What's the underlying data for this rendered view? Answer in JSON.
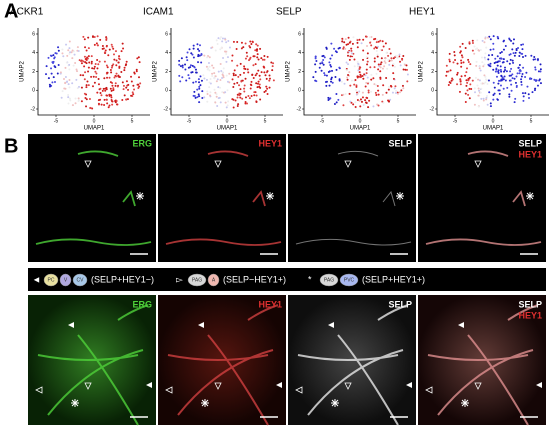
{
  "panel_a": {
    "label": "A",
    "plots": [
      {
        "title": "ACKR1",
        "x_label": "UMAP1",
        "y_label": "UMAP2",
        "yticks": [
          "6",
          "4",
          "2",
          "0",
          "-2"
        ],
        "xticks": [
          "-5",
          "0",
          "5"
        ]
      },
      {
        "title": "ICAM1",
        "x_label": "UMAP1",
        "y_label": "UMAP2",
        "yticks": [
          "6",
          "4",
          "2",
          "0",
          "-2"
        ],
        "xticks": [
          "-5",
          "0",
          "5"
        ]
      },
      {
        "title": "SELP",
        "x_label": "UMAP1",
        "y_label": "UMAP2",
        "yticks": [
          "6",
          "4",
          "2",
          "0",
          "-2"
        ],
        "xticks": [
          "-5",
          "0",
          "5"
        ]
      },
      {
        "title": "HEY1",
        "x_label": "UMAP1",
        "y_label": "UMAP2",
        "yticks": [
          "6",
          "4",
          "2",
          "0",
          "-2"
        ],
        "xticks": [
          "-5",
          "0",
          "5"
        ]
      }
    ]
  },
  "panel_b": {
    "label": "B",
    "row1": [
      {
        "labels": [
          "ERG"
        ]
      },
      {
        "labels": [
          "HEY1"
        ]
      },
      {
        "labels": [
          "SELP"
        ]
      },
      {
        "labels": [
          "SELP",
          "HEY1"
        ]
      }
    ],
    "row2": [
      {
        "labels": [
          "ERG"
        ]
      },
      {
        "labels": [
          "HEY1"
        ]
      },
      {
        "labels": [
          "SELP"
        ]
      },
      {
        "labels": [
          "SELP",
          "HEY1"
        ]
      }
    ],
    "legend": [
      {
        "symbol": "◄",
        "icons": [
          "PC",
          "V",
          "CV"
        ],
        "text": "(SELP+HEY1−)"
      },
      {
        "symbol": "▻",
        "icons": [
          "PAG",
          "A"
        ],
        "text": "(SELP−HEY1+)"
      },
      {
        "symbol": "*",
        "icons": [
          "PAG",
          "PVC"
        ],
        "text": "(SELP+HEY1+)"
      }
    ]
  }
}
